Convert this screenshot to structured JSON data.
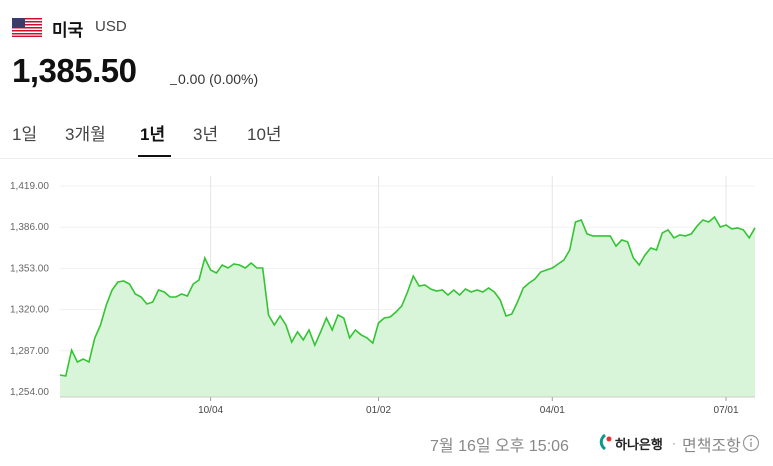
{
  "country": "미국",
  "currency": "USD",
  "price": "1,385.50",
  "change": "0.00 (0.00%)",
  "tabs": [
    "1일",
    "3개월",
    "1년",
    "3년",
    "10년"
  ],
  "selected_tab": 2,
  "chart_data": {
    "type": "line",
    "color": "#33c433",
    "fill": "#d9f5d9",
    "values": [
      1267.6,
      1266.8,
      1287.6,
      1278,
      1280.4,
      1278,
      1297.3,
      1307.7,
      1323.7,
      1335.7,
      1342.1,
      1342.9,
      1340.5,
      1332.5,
      1330.1,
      1324.5,
      1326.1,
      1335.7,
      1334.1,
      1330.1,
      1330.1,
      1332.5,
      1330.9,
      1340.5,
      1343.7,
      1361.3,
      1351.7,
      1349.3,
      1355.7,
      1353.3,
      1356.5,
      1355.7,
      1353.3,
      1357.3,
      1353.3,
      1353.3,
      1315.7,
      1307.7,
      1314.9,
      1307.7,
      1294,
      1302.1,
      1295.7,
      1303.7,
      1291.6,
      1302.1,
      1313.3,
      1303.7,
      1315.7,
      1313.3,
      1297.3,
      1303.7,
      1299.7,
      1297.3,
      1293.2,
      1309.3,
      1313.3,
      1314.1,
      1318.1,
      1322.9,
      1334.1,
      1346.9,
      1338.9,
      1339.7,
      1336.5,
      1334.9,
      1335.7,
      1331.7,
      1335.7,
      1331.7,
      1336.5,
      1334.1,
      1335.7,
      1334.1,
      1337.3,
      1334.1,
      1327.7,
      1314.9,
      1316.5,
      1326.1,
      1337.3,
      1341.3,
      1344.5,
      1350.1,
      1351.7,
      1353.3,
      1356.5,
      1359.7,
      1367.7,
      1390.2,
      1391.8,
      1380.6,
      1379,
      1379,
      1379,
      1379,
      1370.9,
      1375.8,
      1374.2,
      1361.3,
      1355.7,
      1363.7,
      1369.3,
      1367.7,
      1381.4,
      1383.8,
      1377.4,
      1379.8,
      1379,
      1380.6,
      1387,
      1391.8,
      1390.2,
      1394.2,
      1386.2,
      1387.8,
      1384.6,
      1385.4,
      1383.8,
      1377.4,
      1385.5
    ],
    "xlim": [
      0,
      120
    ],
    "xticks": [
      {
        "value": 26,
        "label": "10/04"
      },
      {
        "value": 55,
        "label": "01/02"
      },
      {
        "value": 85,
        "label": "04/01"
      },
      {
        "value": 115,
        "label": "07/01"
      }
    ],
    "ylim": [
      1254,
      1419
    ],
    "yticks": [
      {
        "value": 1254,
        "label": "1,254.00"
      },
      {
        "value": 1287,
        "label": "1,287.00"
      },
      {
        "value": 1320,
        "label": "1,320.00"
      },
      {
        "value": 1353,
        "label": "1,353.00"
      },
      {
        "value": 1386,
        "label": "1,386.00"
      },
      {
        "value": 1419,
        "label": "1,419.00"
      }
    ],
    "grid": true
  },
  "footer": {
    "timestamp": "7월 16일 오후 15:06",
    "bank": "하나은행",
    "disclaimer": "면책조항"
  }
}
